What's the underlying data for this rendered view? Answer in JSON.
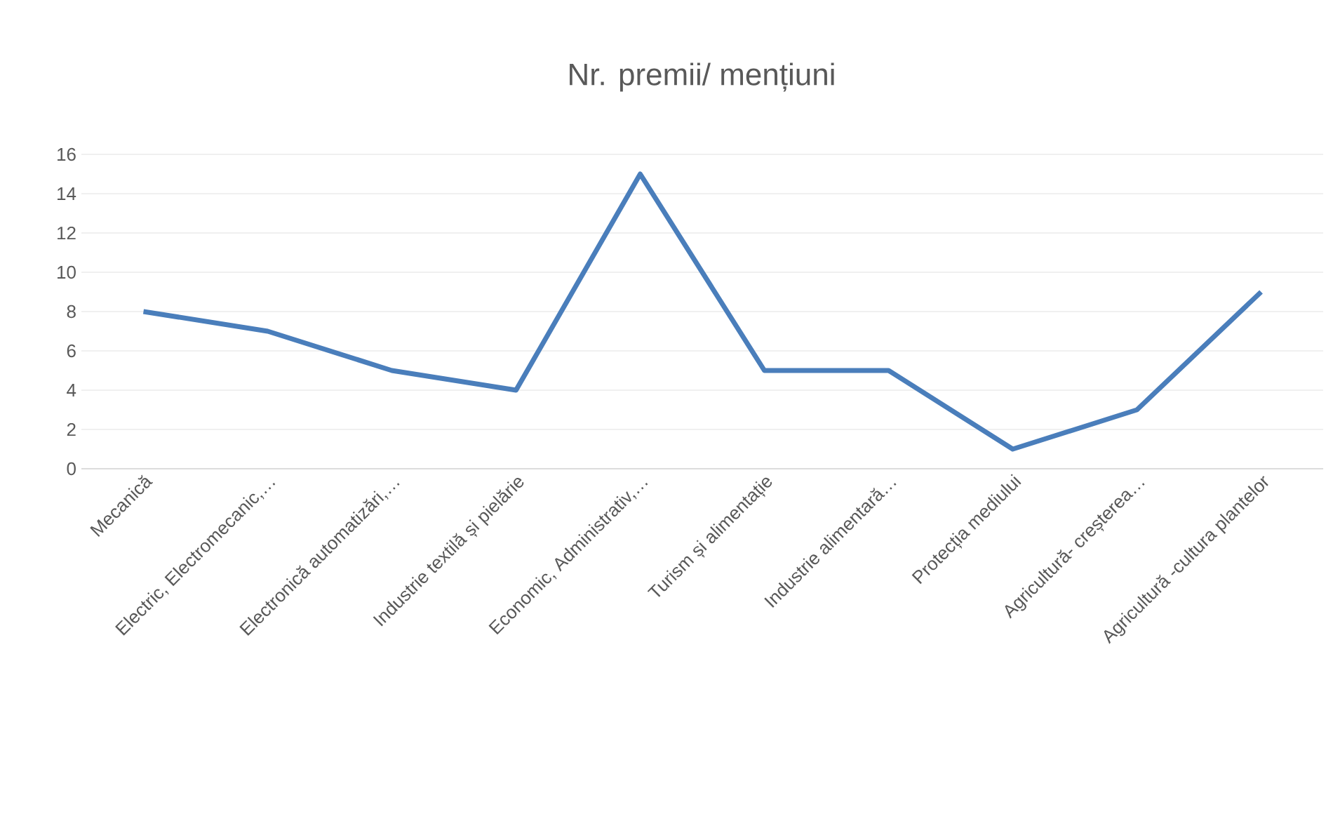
{
  "chart_data": {
    "type": "line",
    "title": "Nr. premii/ mențiuni",
    "categories": [
      "Mecanică",
      "Electric, Electromecanic,…",
      "Electronică automatizări,…",
      "Industrie textilă și pielărie",
      "Economic, Administrativ,…",
      "Turism și alimentație",
      "Industrie alimentară…",
      "Protecția mediului",
      "Agricultură- creșterea…",
      "Agricultură -cultura plantelor"
    ],
    "values": [
      8,
      7,
      5,
      4,
      15,
      5,
      5,
      1,
      3,
      9
    ],
    "color": "#4a7ebb",
    "ylim": [
      0,
      16
    ],
    "yticks": [
      0,
      2,
      4,
      6,
      8,
      10,
      12,
      14,
      16
    ],
    "grid": "y"
  }
}
